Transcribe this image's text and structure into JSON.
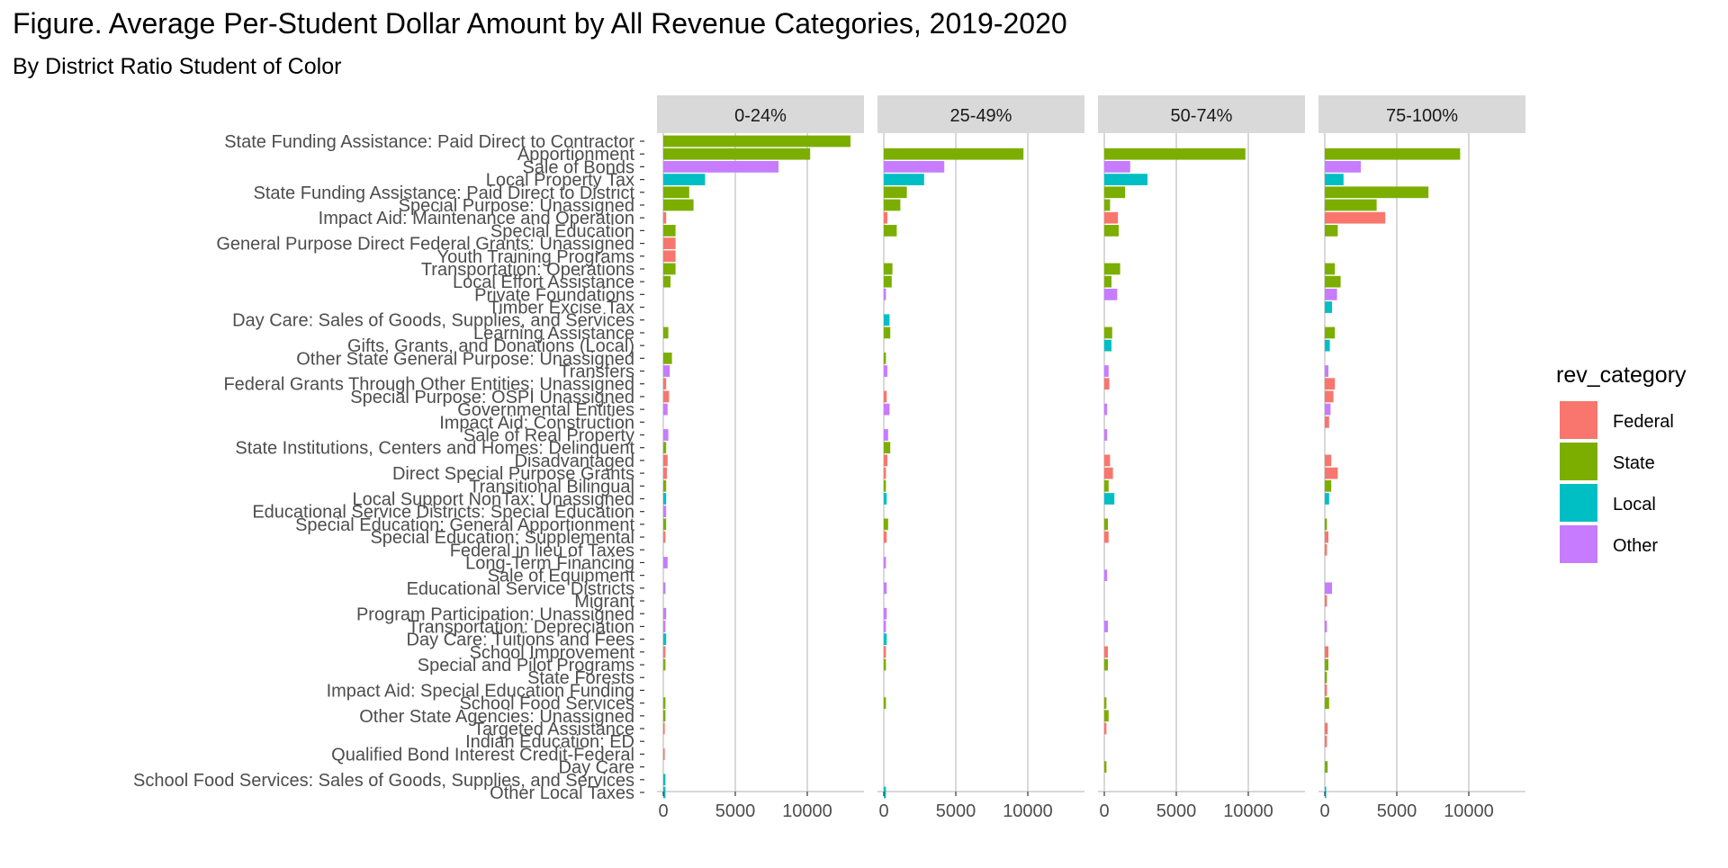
{
  "chart_data": {
    "type": "bar",
    "orientation": "horizontal",
    "title": "Figure. Average Per-Student Dollar Amount by All Revenue Categories, 2019-2020",
    "subtitle": "By District Ratio Student of Color",
    "legend_title": "rev_category",
    "legend_position": "right",
    "grid": true,
    "xlim": [
      0,
      13500
    ],
    "xticks": [
      0,
      5000,
      10000
    ],
    "xtick_labels": [
      "0",
      "5000",
      "10000"
    ],
    "rev_categories": [
      {
        "name": "Federal",
        "color": "#F8766D"
      },
      {
        "name": "State",
        "color": "#7CAE00"
      },
      {
        "name": "Local",
        "color": "#00BFC4"
      },
      {
        "name": "Other",
        "color": "#C77CFF"
      }
    ],
    "categories": [
      {
        "label": "State Funding Assistance: Paid Direct to Contractor",
        "rev_category": "State"
      },
      {
        "label": "Apportionment",
        "rev_category": "State"
      },
      {
        "label": "Sale of Bonds",
        "rev_category": "Other"
      },
      {
        "label": "Local Property Tax",
        "rev_category": "Local"
      },
      {
        "label": "State Funding Assistance: Paid Direct to District",
        "rev_category": "State"
      },
      {
        "label": "Special Purpose: Unassigned",
        "rev_category": "State"
      },
      {
        "label": "Impact Aid: Maintenance and Operation",
        "rev_category": "Federal"
      },
      {
        "label": "Special Education",
        "rev_category": "State"
      },
      {
        "label": "General Purpose Direct Federal Grants: Unassigned",
        "rev_category": "Federal"
      },
      {
        "label": "Youth Training Programs",
        "rev_category": "Federal"
      },
      {
        "label": "Transportation: Operations",
        "rev_category": "State"
      },
      {
        "label": "Local Effort Assistance",
        "rev_category": "State"
      },
      {
        "label": "Private Foundations",
        "rev_category": "Other"
      },
      {
        "label": "Timber Excise Tax",
        "rev_category": "Local"
      },
      {
        "label": "Day Care: Sales of Goods, Supplies, and Services",
        "rev_category": "Local"
      },
      {
        "label": "Learning Assistance",
        "rev_category": "State"
      },
      {
        "label": "Gifts, Grants, and Donations (Local)",
        "rev_category": "Local"
      },
      {
        "label": "Other State General Purpose: Unassigned",
        "rev_category": "State"
      },
      {
        "label": "Transfers",
        "rev_category": "Other"
      },
      {
        "label": "Federal Grants Through Other Entities: Unassigned",
        "rev_category": "Federal"
      },
      {
        "label": "Special Purpose: OSPI Unassigned",
        "rev_category": "Federal"
      },
      {
        "label": "Governmental Entities",
        "rev_category": "Other"
      },
      {
        "label": "Impact Aid: Construction",
        "rev_category": "Federal"
      },
      {
        "label": "Sale of Real Property",
        "rev_category": "Other"
      },
      {
        "label": "State Institutions, Centers and Homes: Delinquent",
        "rev_category": "State"
      },
      {
        "label": "Disadvantaged",
        "rev_category": "Federal"
      },
      {
        "label": "Direct Special Purpose Grants",
        "rev_category": "Federal"
      },
      {
        "label": "Transitional Bilingual",
        "rev_category": "State"
      },
      {
        "label": "Local Support NonTax: Unassigned",
        "rev_category": "Local"
      },
      {
        "label": "Educational Service Districts: Special Education",
        "rev_category": "Other"
      },
      {
        "label": "Special Education: General Apportionment",
        "rev_category": "State"
      },
      {
        "label": "Special Education: Supplemental",
        "rev_category": "Federal"
      },
      {
        "label": "Federal in lieu of Taxes",
        "rev_category": "Federal"
      },
      {
        "label": "Long-Term Financing",
        "rev_category": "Other"
      },
      {
        "label": "Sale of Equipment",
        "rev_category": "Other"
      },
      {
        "label": "Educational Service Districts",
        "rev_category": "Other"
      },
      {
        "label": "Migrant",
        "rev_category": "Federal"
      },
      {
        "label": "Program Participation: Unassigned",
        "rev_category": "Other"
      },
      {
        "label": "Transportation: Depreciation",
        "rev_category": "Other"
      },
      {
        "label": "Day Care: Tuitions and Fees",
        "rev_category": "Local"
      },
      {
        "label": "School Improvement",
        "rev_category": "Federal"
      },
      {
        "label": "Special and Pilot Programs",
        "rev_category": "State"
      },
      {
        "label": "State Forests",
        "rev_category": "State"
      },
      {
        "label": "Impact Aid: Special Education Funding",
        "rev_category": "Federal"
      },
      {
        "label": "School Food Services",
        "rev_category": "State"
      },
      {
        "label": "Other State Agencies: Unassigned",
        "rev_category": "State"
      },
      {
        "label": "Targeted Assistance",
        "rev_category": "Federal"
      },
      {
        "label": "Indian Education: ED",
        "rev_category": "Federal"
      },
      {
        "label": "Qualified Bond Interest Credit-Federal",
        "rev_category": "Federal"
      },
      {
        "label": "Day Care",
        "rev_category": "State"
      },
      {
        "label": "School Food Services: Sales of Goods, Supplies, and Services",
        "rev_category": "Local"
      },
      {
        "label": "Other Local Taxes",
        "rev_category": "Local"
      }
    ],
    "panels": [
      {
        "name": "0-24%",
        "values": [
          13000,
          10200,
          8000,
          2900,
          1800,
          2100,
          200,
          850,
          850,
          850,
          850,
          500,
          0,
          0,
          0,
          350,
          0,
          600,
          450,
          200,
          400,
          300,
          0,
          350,
          200,
          300,
          250,
          200,
          200,
          200,
          200,
          150,
          0,
          300,
          0,
          150,
          0,
          200,
          150,
          200,
          150,
          150,
          0,
          0,
          150,
          150,
          100,
          0,
          100,
          0,
          150,
          150
        ]
      },
      {
        "name": "25-49%",
        "values": [
          0,
          9700,
          4200,
          2800,
          1600,
          1150,
          250,
          900,
          0,
          0,
          600,
          550,
          150,
          0,
          400,
          450,
          0,
          150,
          250,
          0,
          200,
          400,
          0,
          300,
          450,
          250,
          150,
          150,
          200,
          0,
          300,
          200,
          0,
          150,
          0,
          200,
          0,
          200,
          150,
          200,
          150,
          150,
          0,
          0,
          150,
          0,
          0,
          0,
          0,
          0,
          0,
          150
        ]
      },
      {
        "name": "50-74%",
        "values": [
          0,
          9800,
          1800,
          3000,
          1450,
          400,
          950,
          1000,
          0,
          0,
          1100,
          500,
          900,
          0,
          0,
          550,
          500,
          0,
          300,
          350,
          0,
          200,
          0,
          200,
          0,
          400,
          600,
          300,
          700,
          0,
          250,
          300,
          0,
          0,
          200,
          0,
          0,
          0,
          250,
          0,
          250,
          250,
          0,
          0,
          150,
          300,
          150,
          0,
          0,
          150,
          0,
          0
        ]
      },
      {
        "name": "75-100%",
        "values": [
          0,
          9400,
          2500,
          1300,
          7200,
          3600,
          4200,
          900,
          0,
          0,
          700,
          1100,
          850,
          500,
          0,
          700,
          350,
          0,
          250,
          700,
          600,
          400,
          300,
          0,
          0,
          450,
          900,
          450,
          300,
          0,
          150,
          250,
          150,
          0,
          0,
          500,
          150,
          0,
          150,
          0,
          250,
          250,
          150,
          150,
          300,
          0,
          200,
          150,
          0,
          200,
          0,
          100
        ]
      }
    ]
  }
}
